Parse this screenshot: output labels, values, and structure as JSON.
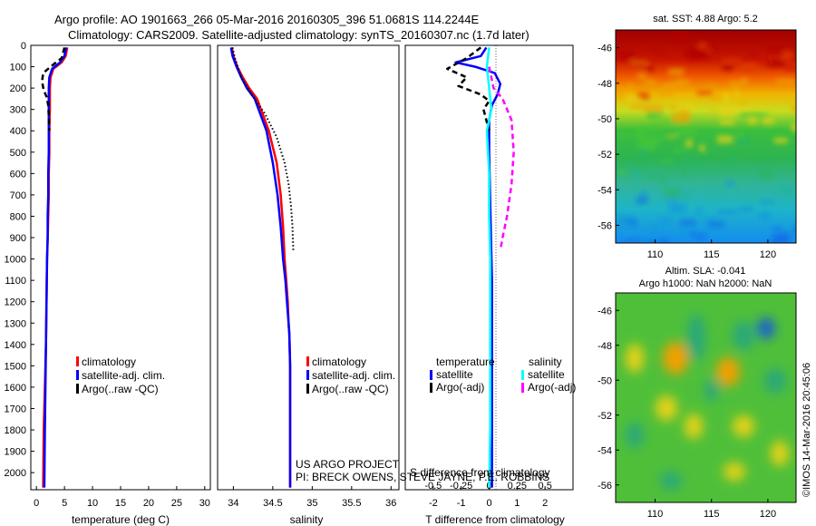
{
  "header": {
    "line1": "Argo profile: AO 1901663_266 05-Mar-2016 20160305_396 51.0681S 114.2244E",
    "line2": "Climatology: CARS2009. Satellite-adjusted climatology: synTS_20160307.nc (1.7d later)"
  },
  "colors": {
    "climatology": "#ff0000",
    "satellite": "#0000ff",
    "argo": "#000000",
    "salinity_satellite": "#00ffff",
    "salinity_argo": "#ff00ff"
  },
  "chart_data": [
    {
      "type": "line",
      "id": "temperature",
      "xlabel": "temperature (deg C)",
      "ylabel": "",
      "xlim": [
        -1,
        31
      ],
      "ylim": [
        2080,
        0
      ],
      "xticks": [
        0,
        5,
        10,
        15,
        20,
        25,
        30
      ],
      "yticks": [
        0,
        100,
        200,
        300,
        400,
        500,
        600,
        700,
        800,
        900,
        1000,
        1100,
        1200,
        1300,
        1400,
        1500,
        1600,
        1700,
        1800,
        1900,
        2000
      ],
      "legend": [
        "climatology",
        "satellite-adj. clim.",
        "Argo(..raw -QC)"
      ],
      "series": [
        {
          "name": "climatology",
          "style": "solid",
          "x": [
            5.5,
            5.2,
            4.5,
            3.0,
            2.5,
            2.4,
            2.4,
            2.3,
            2.3,
            2.2,
            2.2,
            2.1,
            2.0,
            1.9,
            1.8,
            1.7,
            1.5,
            1.3,
            1.2
          ],
          "y": [
            10,
            50,
            80,
            110,
            150,
            200,
            300,
            400,
            500,
            600,
            700,
            800,
            900,
            1000,
            1200,
            1400,
            1600,
            1800,
            2070
          ]
        },
        {
          "name": "satellite-adj. clim.",
          "style": "solid",
          "x": [
            5.3,
            5.0,
            4.2,
            2.8,
            2.3,
            2.2,
            2.2,
            2.2,
            2.2,
            2.1,
            2.1,
            2.0,
            2.0,
            1.9,
            1.8,
            1.7,
            1.6,
            1.5,
            1.4
          ],
          "y": [
            10,
            50,
            80,
            110,
            150,
            200,
            300,
            400,
            500,
            600,
            700,
            800,
            900,
            1000,
            1200,
            1400,
            1600,
            1800,
            2070
          ]
        },
        {
          "name": "Argo(..raw -QC)",
          "style": "dash",
          "x": [
            5.0,
            4.5,
            2.5,
            1.2,
            1.0,
            1.3,
            1.8,
            2.1,
            2.2,
            2.3
          ],
          "y": [
            10,
            60,
            100,
            130,
            170,
            210,
            240,
            280,
            330,
            400
          ]
        }
      ]
    },
    {
      "type": "line",
      "id": "salinity",
      "xlabel": "salinity",
      "xlim": [
        33.8,
        36.1
      ],
      "ylim": [
        2080,
        0
      ],
      "xticks": [
        34,
        34.5,
        35,
        35.5,
        36
      ],
      "legend": [
        "climatology",
        "satellite-adj. clim.",
        "Argo(..raw -QC)"
      ],
      "series": [
        {
          "name": "climatology",
          "style": "solid",
          "x": [
            33.98,
            34.0,
            34.05,
            34.12,
            34.2,
            34.3,
            34.45,
            34.55,
            34.6,
            34.63,
            34.65,
            34.67,
            34.69,
            34.7,
            34.71,
            34.72,
            34.72
          ],
          "y": [
            10,
            50,
            100,
            150,
            200,
            250,
            400,
            550,
            700,
            850,
            1000,
            1100,
            1200,
            1300,
            1350,
            1500,
            2070
          ]
        },
        {
          "name": "satellite-adj. clim.",
          "style": "solid",
          "x": [
            33.97,
            33.99,
            34.04,
            34.1,
            34.17,
            34.27,
            34.42,
            34.5,
            34.56,
            34.6,
            34.63,
            34.66,
            34.68,
            34.7,
            34.71,
            34.72,
            34.72
          ],
          "y": [
            10,
            50,
            100,
            150,
            200,
            250,
            400,
            550,
            700,
            850,
            1000,
            1100,
            1200,
            1300,
            1350,
            1500,
            2070
          ]
        },
        {
          "name": "Argo(..raw -QC)",
          "style": "dot",
          "x": [
            33.99,
            34.02,
            34.1,
            34.25,
            34.4,
            34.55,
            34.65,
            34.7,
            34.73,
            34.75,
            34.76
          ],
          "y": [
            10,
            60,
            150,
            240,
            320,
            430,
            550,
            650,
            750,
            850,
            960
          ]
        }
      ]
    },
    {
      "type": "line",
      "id": "difference",
      "xlabel": "T difference from climatology",
      "xlabel_top": "S difference from climatology",
      "xlim": [
        -3,
        3
      ],
      "ylim": [
        2080,
        0
      ],
      "xticks": [
        -2,
        -1,
        0,
        1,
        2
      ],
      "xticks_top": [
        -0.5,
        -0.25,
        0,
        0.25,
        0.5
      ],
      "legend": {
        "temperature": [
          "satellite",
          "Argo(-adj)"
        ],
        "salinity": [
          "satellite",
          "Argo(-adj)"
        ]
      },
      "legend_headers": [
        "temperature",
        "salinity"
      ],
      "series": [
        {
          "name": "temperature satellite",
          "style": "solid",
          "x": [
            -0.1,
            -0.3,
            -1.2,
            -0.5,
            0.2,
            0.4,
            0.3,
            0.1,
            0.0,
            0.0,
            0.05,
            0.1,
            0.1,
            0.1,
            0.1
          ],
          "y": [
            10,
            50,
            80,
            100,
            130,
            180,
            230,
            280,
            350,
            500,
            800,
            1100,
            1400,
            1800,
            2070
          ]
        },
        {
          "name": "temperature Argo(-adj)",
          "style": "dash",
          "x": [
            -0.3,
            -0.8,
            -1.5,
            -0.8,
            -1.1,
            -0.3,
            0.0,
            -0.2,
            -0.1,
            0.0
          ],
          "y": [
            10,
            60,
            110,
            150,
            190,
            230,
            260,
            300,
            350,
            400
          ]
        },
        {
          "name": "salinity satellite",
          "style": "solid",
          "x": [
            0.0,
            -0.02,
            0.0,
            0.02,
            -0.02,
            0.0,
            0.0,
            0.01,
            0.01,
            0.01,
            0.0
          ],
          "y": [
            10,
            100,
            200,
            300,
            400,
            600,
            800,
            1000,
            1400,
            1800,
            2070
          ]
        },
        {
          "name": "salinity Argo(-adj)",
          "style": "dash",
          "x": [
            0.0,
            0.04,
            0.12,
            0.2,
            0.22,
            0.2,
            0.16,
            0.12,
            0.1
          ],
          "y": [
            100,
            200,
            250,
            350,
            500,
            650,
            800,
            900,
            960
          ]
        }
      ]
    },
    {
      "type": "heatmap",
      "id": "sst-map",
      "title": "sat. SST: 4.88 Argo: 5.2",
      "xticks": [
        110,
        115,
        120
      ],
      "yticks": [
        -46,
        -48,
        -50,
        -52,
        -54,
        -56
      ],
      "xlim": [
        106.5,
        122.5
      ],
      "ylim": [
        -57,
        -45
      ]
    },
    {
      "type": "heatmap",
      "id": "sla-map",
      "title": "Altim. SLA: -0.041",
      "subtitle": "Argo h1000: NaN h2000: NaN",
      "xticks": [
        110,
        115,
        120
      ],
      "yticks": [
        -46,
        -48,
        -50,
        -52,
        -54,
        -56
      ],
      "xlim": [
        106.5,
        122.5
      ],
      "ylim": [
        -57,
        -45
      ]
    }
  ],
  "footer": {
    "project_line1": "US ARGO PROJECT",
    "project_line2": "PI: BRECK OWENS, STEVE JAYNE, P.E. ROBBINS",
    "imos_stamp": "©IMOS 14-Mar-2016 20:45:06"
  }
}
